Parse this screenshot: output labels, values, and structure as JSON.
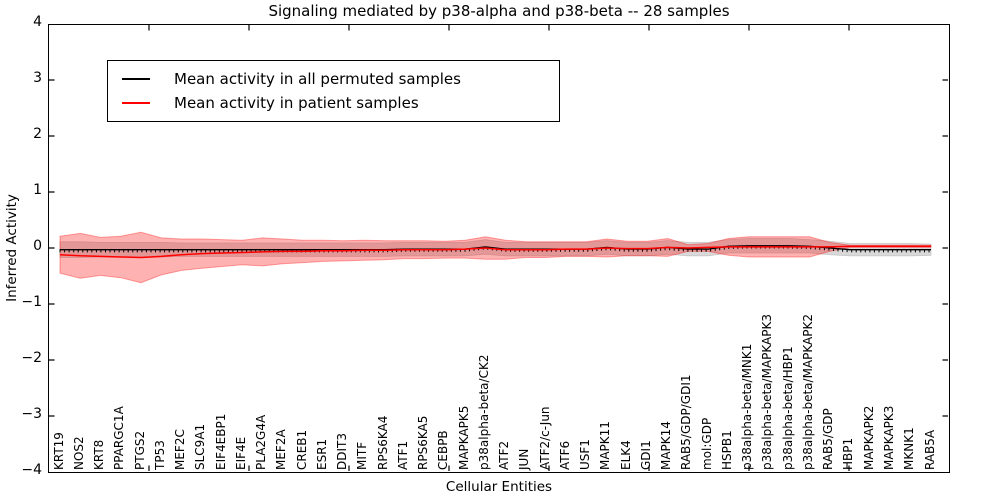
{
  "title": "Signaling mediated by p38-alpha and p38-beta -- 28 samples",
  "legend": {
    "items": [
      {
        "label": "Mean activity in all permuted samples",
        "color": "#000000"
      },
      {
        "label": "Mean activity in patient samples",
        "color": "#ff0000"
      }
    ]
  },
  "axes": {
    "ylabel": "Inferred Activity",
    "xlabel": "Cellular Entities",
    "y_tick_labels": [
      "4",
      "3",
      "2",
      "1",
      "0",
      "−1",
      "−2",
      "−3",
      "−4"
    ],
    "y_tick_values": [
      4,
      3,
      2,
      1,
      0,
      -1,
      -2,
      -3,
      -4
    ],
    "ylim": [
      -4,
      4
    ]
  },
  "chart_data": {
    "type": "line",
    "title": "Signaling mediated by p38-alpha and p38-beta -- 28 samples",
    "xlabel": "Cellular Entities",
    "ylabel": "Inferred Activity",
    "ylim": [
      -4,
      4
    ],
    "grid": false,
    "legend_position": "upper left",
    "categories": [
      "KRT19",
      "NOS2",
      "KRT8",
      "PPARGC1A",
      "PTGS2",
      "TP53",
      "MEF2C",
      "SLC9A1",
      "EIF4EBP1",
      "EIF4E",
      "PLA2G4A",
      "MEF2A",
      "CREB1",
      "ESR1",
      "DDIT3",
      "MITF",
      "RPS6KA4",
      "ATF1",
      "RPS6KA5",
      "CEBPB",
      "MAPKAPK5",
      "p38alpha-beta/CK2",
      "ATF2",
      "JUN",
      "ATF2/c-Jun",
      "ATF6",
      "USF1",
      "MAPK11",
      "ELK4",
      "GDI1",
      "MAPK14",
      "RAB5/GDP/GDI1",
      "mol:GDP",
      "HSPB1",
      "p38alpha-beta/MNK1",
      "p38alpha-beta/MAPKAPK3",
      "p38alpha-beta/HBP1",
      "p38alpha-beta/MAPKAPK2",
      "RAB5/GDP",
      "HBP1",
      "MAPKAPK2",
      "MAPKAPK3",
      "MKNK1",
      "RAB5A"
    ],
    "series": [
      {
        "name": "Mean activity in all permuted samples",
        "color": "#000000",
        "band_color": "#d9d9d9",
        "mean": [
          -0.03,
          -0.03,
          -0.03,
          -0.03,
          -0.03,
          -0.03,
          -0.03,
          -0.03,
          -0.03,
          -0.03,
          -0.03,
          -0.03,
          -0.03,
          -0.03,
          -0.03,
          -0.03,
          -0.03,
          -0.02,
          -0.02,
          -0.02,
          -0.02,
          0.02,
          -0.02,
          -0.02,
          -0.02,
          -0.02,
          -0.02,
          0.01,
          -0.02,
          -0.02,
          0.01,
          -0.02,
          -0.02,
          0.03,
          0.04,
          0.04,
          0.04,
          0.03,
          0.0,
          -0.03,
          -0.03,
          -0.03,
          -0.03,
          -0.03
        ],
        "band_halfwidth": [
          0.14,
          0.14,
          0.13,
          0.13,
          0.13,
          0.13,
          0.12,
          0.12,
          0.12,
          0.12,
          0.12,
          0.12,
          0.12,
          0.12,
          0.12,
          0.12,
          0.12,
          0.12,
          0.12,
          0.12,
          0.12,
          0.13,
          0.12,
          0.12,
          0.12,
          0.12,
          0.12,
          0.12,
          0.12,
          0.12,
          0.12,
          0.12,
          0.12,
          0.12,
          0.13,
          0.13,
          0.13,
          0.12,
          0.12,
          0.11,
          0.11,
          0.11,
          0.11,
          0.1
        ]
      },
      {
        "name": "Mean activity in patient samples",
        "color": "#ff0000",
        "band_color": "rgba(255,0,0,0.30)",
        "mean": [
          -0.12,
          -0.14,
          -0.15,
          -0.16,
          -0.17,
          -0.15,
          -0.12,
          -0.1,
          -0.09,
          -0.08,
          -0.07,
          -0.06,
          -0.06,
          -0.05,
          -0.05,
          -0.04,
          -0.04,
          -0.03,
          -0.03,
          -0.03,
          -0.02,
          0.0,
          -0.03,
          -0.03,
          -0.03,
          -0.02,
          -0.02,
          0.0,
          -0.01,
          -0.01,
          0.01,
          0.0,
          0.01,
          0.02,
          0.02,
          0.02,
          0.02,
          0.02,
          0.02,
          0.03,
          0.03,
          0.03,
          0.03,
          0.03
        ],
        "band_halfwidth": [
          0.33,
          0.4,
          0.34,
          0.37,
          0.45,
          0.33,
          0.28,
          0.26,
          0.24,
          0.22,
          0.25,
          0.22,
          0.2,
          0.19,
          0.18,
          0.18,
          0.17,
          0.16,
          0.16,
          0.15,
          0.16,
          0.2,
          0.17,
          0.14,
          0.14,
          0.13,
          0.13,
          0.16,
          0.13,
          0.13,
          0.16,
          0.06,
          0.07,
          0.15,
          0.18,
          0.18,
          0.18,
          0.18,
          0.08,
          0.02,
          0.02,
          0.02,
          0.02,
          0.02
        ]
      }
    ]
  }
}
